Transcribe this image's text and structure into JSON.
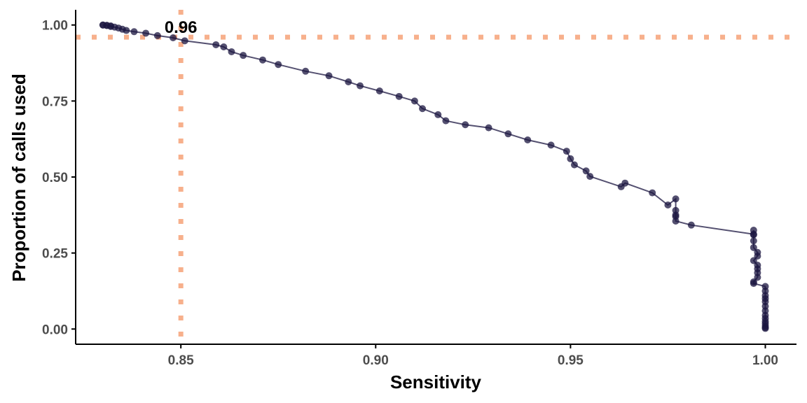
{
  "chart_data": {
    "type": "line",
    "xlabel": "Sensitivity",
    "ylabel": "Proportion of calls used",
    "xlim": [
      0.823,
      1.008
    ],
    "ylim": [
      -0.05,
      1.05
    ],
    "x_ticks": [
      0.85,
      0.9,
      0.95,
      1.0
    ],
    "x_tick_labels": [
      "0.85",
      "0.90",
      "0.95",
      "1.00"
    ],
    "y_ticks": [
      0.0,
      0.25,
      0.5,
      0.75,
      1.0
    ],
    "y_tick_labels": [
      "0.00",
      "0.25",
      "0.50",
      "0.75",
      "1.00"
    ],
    "grid": false,
    "reference_lines": {
      "vertical_x": 0.85,
      "horizontal_y": 0.96
    },
    "annotation": {
      "text": "0.96",
      "x": 0.85,
      "y": 0.96
    },
    "colors": {
      "series": "#1b1640",
      "reference": "#f7b08c",
      "axis": "#000000"
    },
    "series": [
      {
        "x": [
          0.83,
          0.83,
          0.831,
          0.831,
          0.832,
          0.832,
          0.833,
          0.834,
          0.835,
          0.836,
          0.838,
          0.841,
          0.844,
          0.848,
          0.851,
          0.859,
          0.861,
          0.863,
          0.866,
          0.871,
          0.875,
          0.882,
          0.888,
          0.893,
          0.896,
          0.901,
          0.906,
          0.91,
          0.912,
          0.916,
          0.918,
          0.923,
          0.929,
          0.934,
          0.939,
          0.945,
          0.949,
          0.95,
          0.951,
          0.954,
          0.955,
          0.963,
          0.964,
          0.971,
          0.975,
          0.977,
          0.977,
          0.977,
          0.977,
          0.977,
          0.981,
          0.997,
          0.997,
          0.997,
          0.997,
          0.997,
          0.998,
          0.998,
          0.997,
          0.998,
          0.998,
          0.998,
          0.998,
          0.997,
          0.997,
          1.0,
          1.0,
          1.0,
          1.0,
          1.0,
          1.0,
          1.0,
          1.0,
          1.0,
          1.0,
          1.0,
          1.0,
          1.0,
          1.0
        ],
        "y": [
          1.0,
          1.0,
          0.999,
          0.998,
          0.997,
          0.995,
          0.993,
          0.99,
          0.986,
          0.982,
          0.978,
          0.973,
          0.965,
          0.958,
          0.948,
          0.935,
          0.928,
          0.912,
          0.9,
          0.885,
          0.87,
          0.848,
          0.833,
          0.813,
          0.8,
          0.783,
          0.765,
          0.75,
          0.725,
          0.705,
          0.685,
          0.672,
          0.662,
          0.642,
          0.622,
          0.605,
          0.585,
          0.56,
          0.54,
          0.52,
          0.502,
          0.468,
          0.48,
          0.448,
          0.408,
          0.428,
          0.39,
          0.375,
          0.37,
          0.355,
          0.342,
          0.312,
          0.325,
          0.31,
          0.29,
          0.268,
          0.252,
          0.24,
          0.225,
          0.21,
          0.198,
          0.185,
          0.17,
          0.155,
          0.15,
          0.14,
          0.125,
          0.11,
          0.1,
          0.09,
          0.075,
          0.06,
          0.045,
          0.035,
          0.025,
          0.018,
          0.01,
          0.005,
          0.002
        ]
      }
    ]
  }
}
